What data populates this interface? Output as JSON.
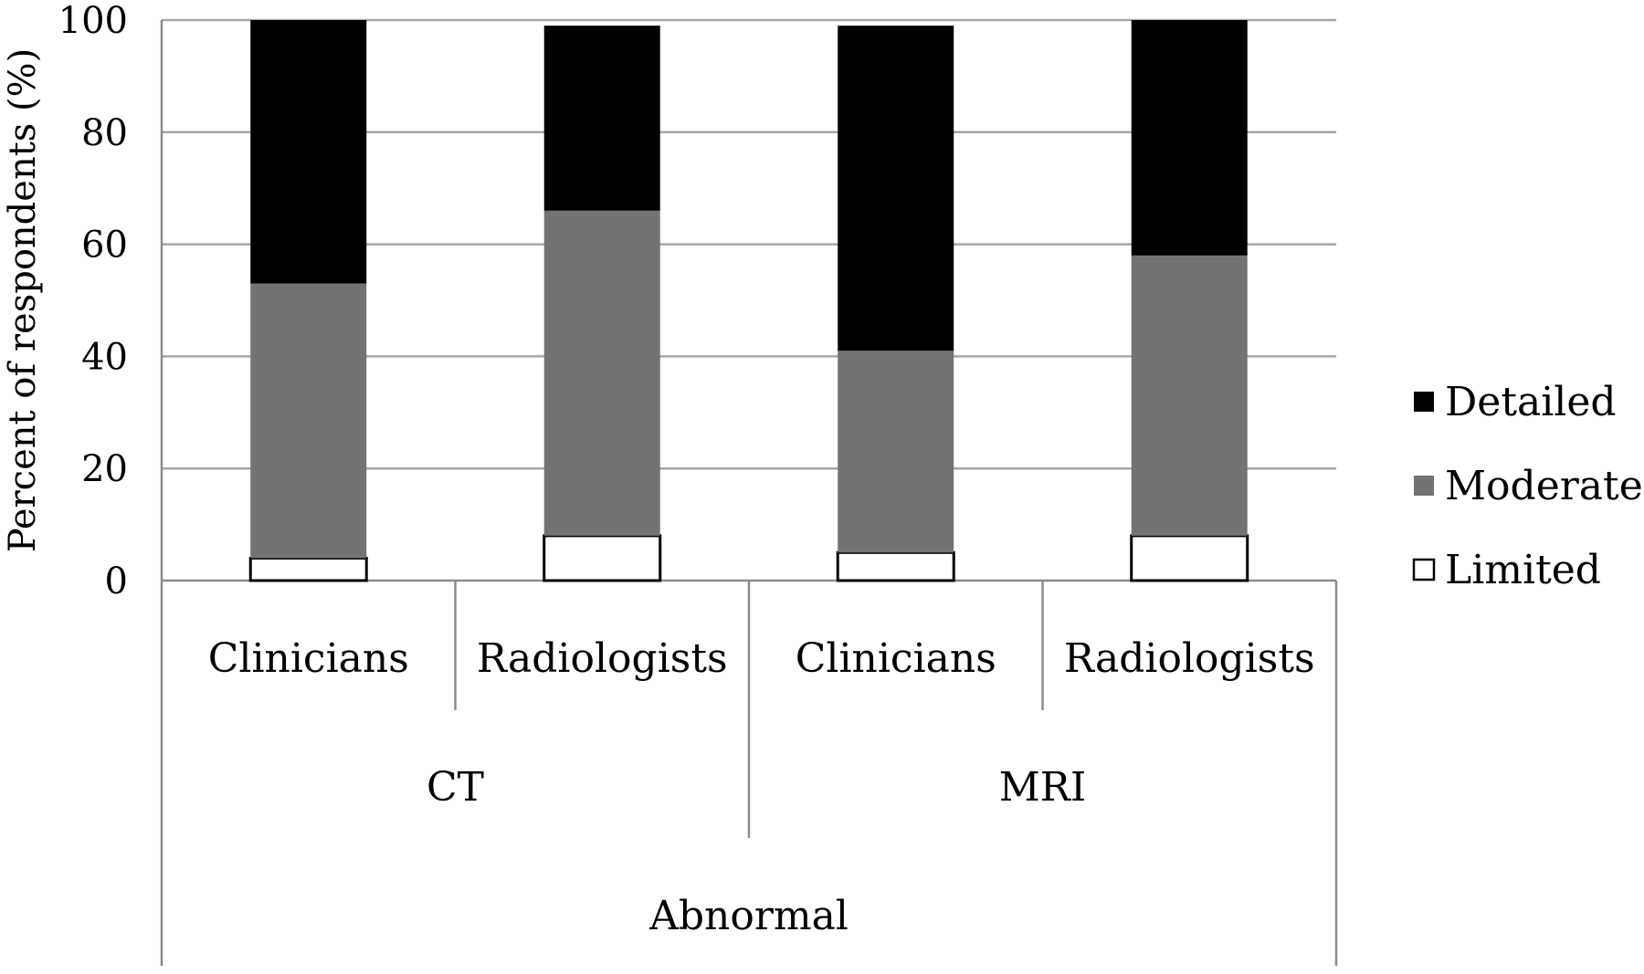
{
  "chart_data": {
    "type": "bar",
    "stacked": true,
    "ylabel": "Percent of respondents (%)",
    "xlabel": "",
    "ylim": [
      0,
      100
    ],
    "yticks": [
      0,
      20,
      40,
      60,
      80,
      100
    ],
    "grid": true,
    "legend_position": "right",
    "categories": [
      "Clinicians",
      "Radiologists",
      "Clinicians",
      "Radiologists"
    ],
    "groups": [
      {
        "label": "CT",
        "span": [
          0,
          1
        ]
      },
      {
        "label": "MRI",
        "span": [
          2,
          3
        ]
      }
    ],
    "supergroup": {
      "label": "Abnormal",
      "span": [
        0,
        3
      ]
    },
    "series": [
      {
        "name": "Limited",
        "color": "#ffffff",
        "values": [
          4,
          8,
          5,
          8
        ]
      },
      {
        "name": "Moderate",
        "color": "#737373",
        "values": [
          49,
          58,
          36,
          50
        ]
      },
      {
        "name": "Detailed",
        "color": "#000000",
        "values": [
          47,
          33,
          58,
          42
        ]
      }
    ],
    "legend_order": [
      "Detailed",
      "Moderate",
      "Limited"
    ]
  }
}
